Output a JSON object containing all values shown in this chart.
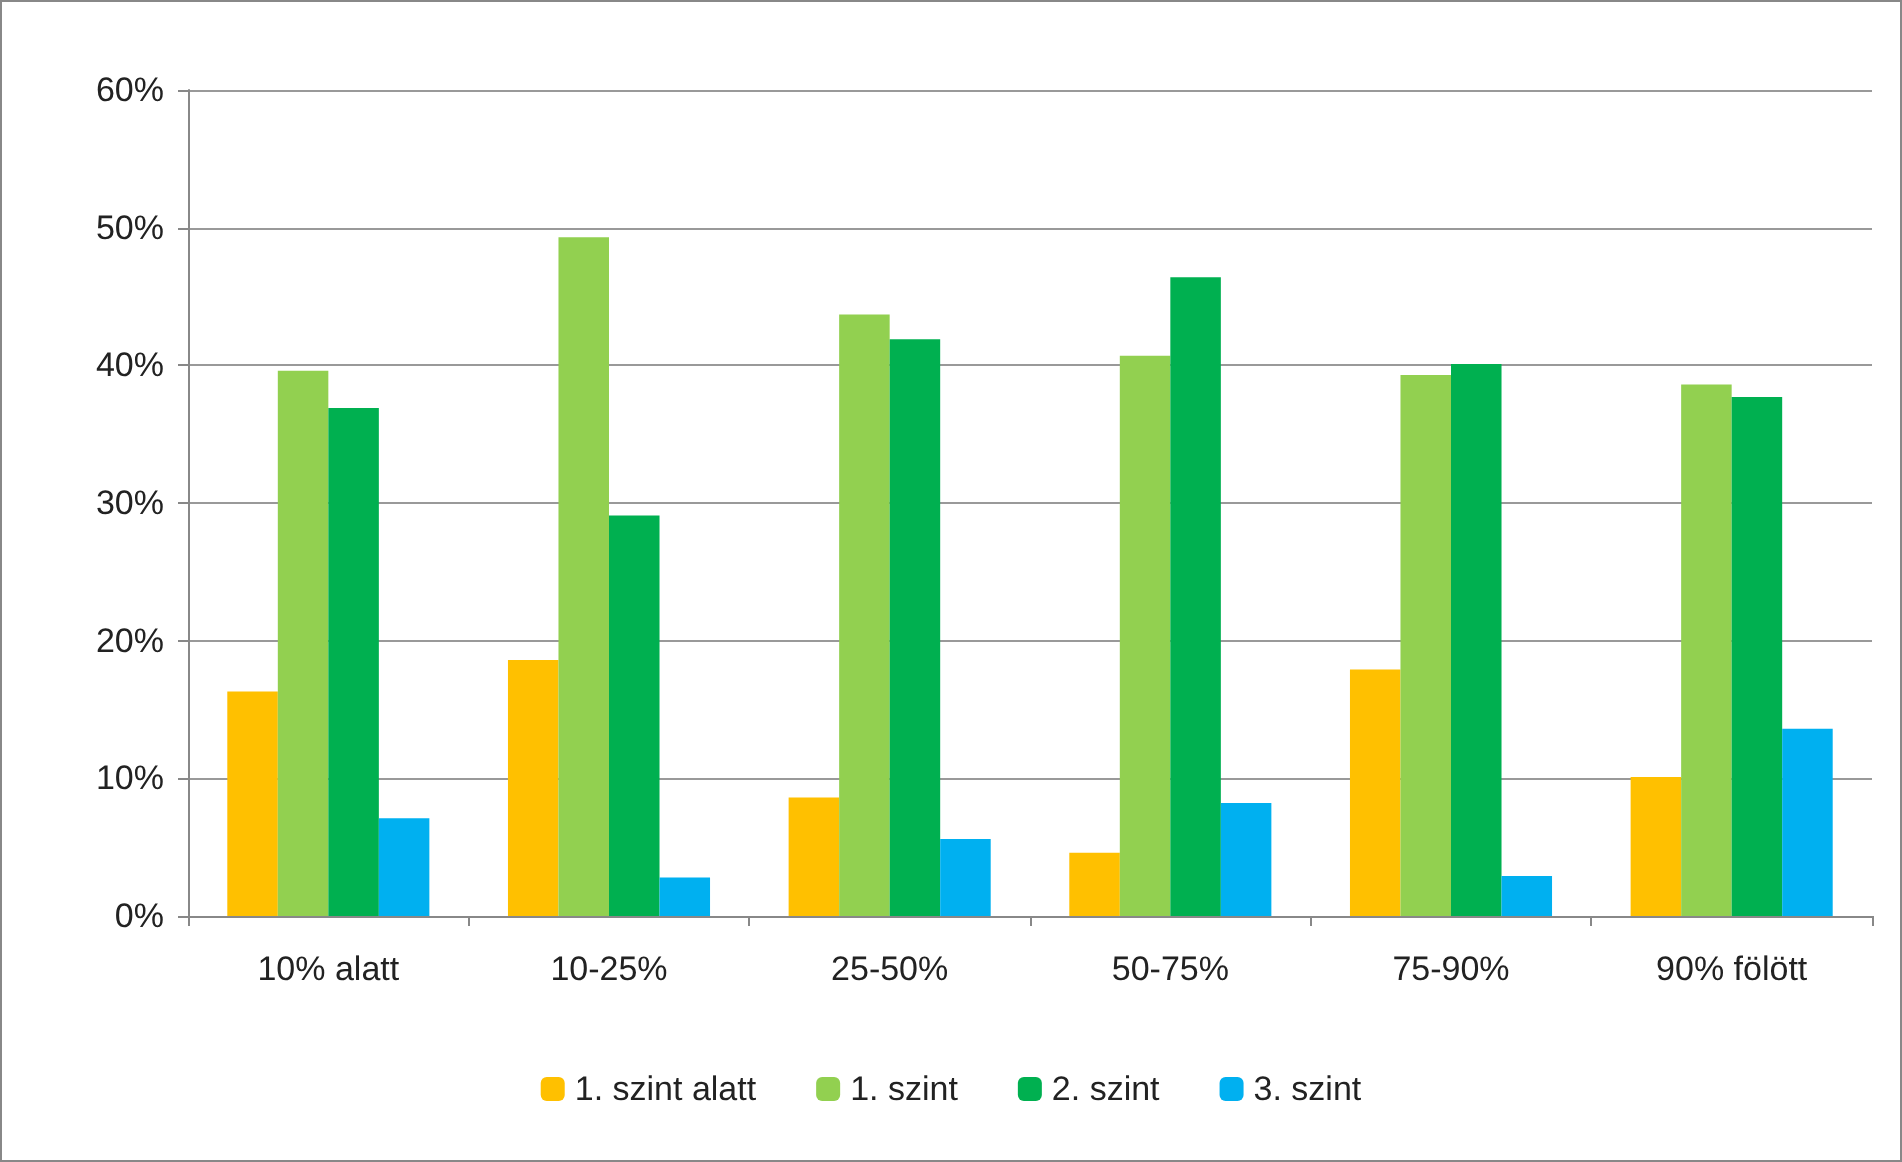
{
  "chart_data": {
    "type": "bar",
    "categories": [
      "10% alatt",
      "10-25%",
      "25-50%",
      "50-75%",
      "75-90%",
      "90% fölött"
    ],
    "series": [
      {
        "name": "1. szint alatt",
        "color": "#ffc000",
        "values": [
          16.3,
          18.6,
          8.6,
          4.6,
          17.9,
          10.1
        ]
      },
      {
        "name": "1. szint",
        "color": "#92d050",
        "values": [
          39.6,
          49.3,
          43.7,
          40.7,
          39.3,
          38.6
        ]
      },
      {
        "name": "2. szint",
        "color": "#00b050",
        "values": [
          36.9,
          29.1,
          41.9,
          46.4,
          40.1,
          37.7
        ]
      },
      {
        "name": "3. szint",
        "color": "#00b0f0",
        "values": [
          7.1,
          2.8,
          5.6,
          8.2,
          2.9,
          13.6
        ]
      }
    ],
    "ylim": [
      0,
      60
    ],
    "yticks": [
      {
        "value": 0,
        "label": "0%"
      },
      {
        "value": 10,
        "label": "10%"
      },
      {
        "value": 20,
        "label": "20%"
      },
      {
        "value": 30,
        "label": "30%"
      },
      {
        "value": 40,
        "label": "40%"
      },
      {
        "value": 50,
        "label": "50%"
      },
      {
        "value": 60,
        "label": "60%"
      }
    ],
    "grid": "y",
    "legend": "bottom"
  }
}
